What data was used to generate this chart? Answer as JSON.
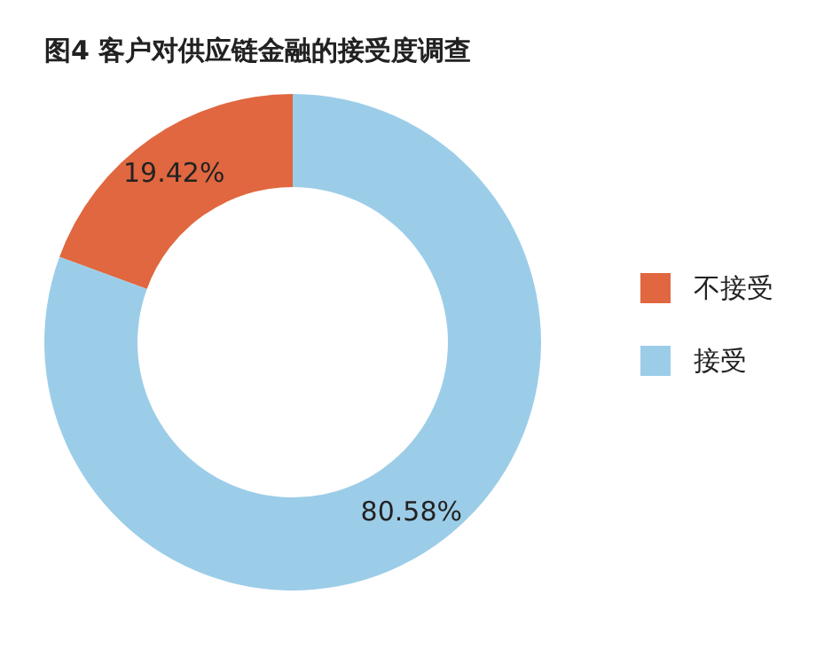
{
  "chart_data": {
    "type": "donut",
    "title": "图4 客户对供应链金融的接受度调查",
    "categories": [
      "不接受",
      "接受"
    ],
    "values": [
      19.42,
      80.58
    ],
    "colors": [
      "#e0673f",
      "#9ccde8"
    ],
    "value_labels": [
      "19.42%",
      "80.58%"
    ],
    "legend": "right"
  }
}
